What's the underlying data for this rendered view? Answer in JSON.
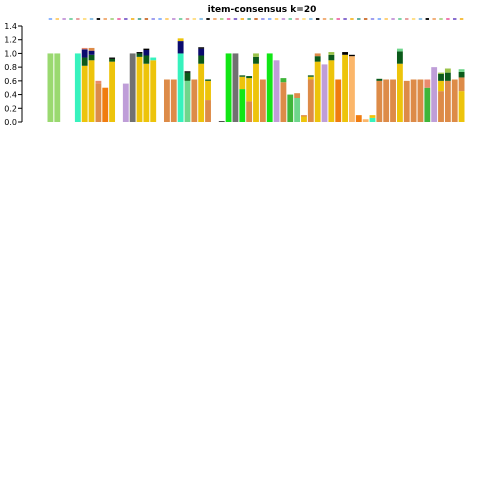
{
  "chart_data": {
    "type": "bar",
    "stacked": true,
    "title": "item-consensus k=20",
    "xlabel": "",
    "ylabel": "",
    "ylim": [
      0,
      1.4
    ],
    "yticks": [
      "0.0",
      "0.2",
      "0.4",
      "0.6",
      "0.8",
      "1.0",
      "1.2",
      "1.4"
    ],
    "grid": false,
    "legend": "none",
    "cluster_strip": true,
    "cluster_colors": [
      "#8fb8ff",
      "#ffd27a",
      "#c9a0dc",
      "#7fd6a8",
      "#e8a0a0",
      "#ffe08a",
      "#90c4e8",
      "#1a1a1a",
      "#f2b07a",
      "#b0d890",
      "#f07ab0",
      "#8a6fd0",
      "#f6c046",
      "#5fb0a0",
      "#d07a40",
      "#a0a0f0"
    ],
    "segment_colors": {
      "lightgreen": "#9ad970",
      "turquoise": "#37f2bd",
      "gold": "#edc40b",
      "darkgreen": "#0b5a1a",
      "navy": "#0b0b6e",
      "black": "#000000",
      "salmon": "#e98a6d",
      "orange": "#f07c10",
      "lavender": "#bf9ed8",
      "gray": "#717171",
      "green": "#11e615",
      "tan": "#dd8b48",
      "peach": "#fbb66a",
      "medgreen": "#3fb53a",
      "mint": "#6fd68c",
      "olive": "#9ac34a"
    },
    "items": [
      [
        [
          "lightgreen",
          1.0
        ]
      ],
      [
        [
          "lightgreen",
          1.0
        ]
      ],
      [],
      [],
      [
        [
          "turquoise",
          1.0
        ]
      ],
      [
        [
          "gold",
          0.82
        ],
        [
          "darkgreen",
          0.12
        ],
        [
          "navy",
          0.12
        ],
        [
          "salmon",
          0.02
        ]
      ],
      [
        [
          "gold",
          0.9
        ],
        [
          "darkgreen",
          0.08
        ],
        [
          "navy",
          0.06
        ],
        [
          "tan",
          0.04
        ]
      ],
      [
        [
          "tan",
          0.56
        ],
        [
          "salmon",
          0.04
        ]
      ],
      [
        [
          "orange",
          0.5
        ]
      ],
      [
        [
          "gold",
          0.88
        ],
        [
          "darkgreen",
          0.04
        ],
        [
          "black",
          0.02
        ]
      ],
      [],
      [
        [
          "lavender",
          0.56
        ]
      ],
      [
        [
          "gray",
          1.0
        ]
      ],
      [
        [
          "gold",
          0.95
        ],
        [
          "darkgreen",
          0.05
        ],
        [
          "black",
          0.02
        ]
      ],
      [
        [
          "gold",
          0.85
        ],
        [
          "darkgreen",
          0.12
        ],
        [
          "navy",
          0.08
        ],
        [
          "black",
          0.02
        ]
      ],
      [
        [
          "gold",
          0.9
        ],
        [
          "turquoise",
          0.04
        ]
      ],
      [],
      [
        [
          "tan",
          0.62
        ]
      ],
      [
        [
          "tan",
          0.62
        ]
      ],
      [
        [
          "turquoise",
          1.0
        ],
        [
          "navy",
          0.18
        ],
        [
          "gold",
          0.04
        ]
      ],
      [
        [
          "mint",
          0.6
        ],
        [
          "darkgreen",
          0.12
        ],
        [
          "black",
          0.02
        ]
      ],
      [
        [
          "tan",
          0.62
        ]
      ],
      [
        [
          "gold",
          0.85
        ],
        [
          "darkgreen",
          0.12
        ],
        [
          "navy",
          0.1
        ],
        [
          "black",
          0.02
        ]
      ],
      [
        [
          "tan",
          0.32
        ],
        [
          "gold",
          0.28
        ],
        [
          "darkgreen",
          0.02
        ]
      ],
      [],
      [
        [
          "black",
          0.01
        ]
      ],
      [
        [
          "green",
          1.0
        ]
      ],
      [
        [
          "gray",
          1.0
        ]
      ],
      [
        [
          "green",
          0.48
        ],
        [
          "gold",
          0.18
        ],
        [
          "darkgreen",
          0.02
        ]
      ],
      [
        [
          "tan",
          0.3
        ],
        [
          "gold",
          0.34
        ],
        [
          "darkgreen",
          0.03
        ]
      ],
      [
        [
          "gold",
          0.85
        ],
        [
          "darkgreen",
          0.1
        ],
        [
          "olive",
          0.05
        ]
      ],
      [
        [
          "tan",
          0.62
        ]
      ],
      [
        [
          "green",
          1.0
        ]
      ],
      [
        [
          "lavender",
          0.9
        ]
      ],
      [
        [
          "tan",
          0.58
        ],
        [
          "medgreen",
          0.06
        ]
      ],
      [
        [
          "medgreen",
          0.4
        ]
      ],
      [
        [
          "mint",
          0.35
        ],
        [
          "tan",
          0.07
        ]
      ],
      [
        [
          "gold",
          0.08
        ],
        [
          "tan",
          0.02
        ]
      ],
      [
        [
          "tan",
          0.62
        ],
        [
          "gold",
          0.04
        ],
        [
          "darkgreen",
          0.02
        ]
      ],
      [
        [
          "gold",
          0.88
        ],
        [
          "darkgreen",
          0.08
        ],
        [
          "tan",
          0.04
        ]
      ],
      [
        [
          "lavender",
          0.84
        ]
      ],
      [
        [
          "gold",
          0.9
        ],
        [
          "darkgreen",
          0.08
        ],
        [
          "olive",
          0.04
        ]
      ],
      [
        [
          "orange",
          0.62
        ]
      ],
      [
        [
          "gold",
          0.98
        ],
        [
          "black",
          0.04
        ]
      ],
      [
        [
          "peach",
          0.96
        ],
        [
          "black",
          0.02
        ]
      ],
      [
        [
          "orange",
          0.1
        ]
      ],
      [
        [
          "peach",
          0.04
        ]
      ],
      [
        [
          "turquoise",
          0.06
        ],
        [
          "gold",
          0.04
        ]
      ],
      [
        [
          "tan",
          0.6
        ],
        [
          "darkgreen",
          0.03
        ]
      ],
      [
        [
          "tan",
          0.62
        ]
      ],
      [
        [
          "tan",
          0.62
        ]
      ],
      [
        [
          "gold",
          0.85
        ],
        [
          "darkgreen",
          0.18
        ],
        [
          "mint",
          0.04
        ]
      ],
      [
        [
          "tan",
          0.6
        ]
      ],
      [
        [
          "tan",
          0.62
        ]
      ],
      [
        [
          "tan",
          0.62
        ]
      ],
      [
        [
          "medgreen",
          0.5
        ],
        [
          "salmon",
          0.12
        ]
      ],
      [
        [
          "lavender",
          0.8
        ]
      ],
      [
        [
          "tan",
          0.45
        ],
        [
          "gold",
          0.15
        ],
        [
          "darkgreen",
          0.1
        ],
        [
          "olive",
          0.02
        ]
      ],
      [
        [
          "tan",
          0.6
        ],
        [
          "darkgreen",
          0.12
        ],
        [
          "olive",
          0.06
        ]
      ],
      [
        [
          "tan",
          0.62
        ]
      ],
      [
        [
          "gold",
          0.45
        ],
        [
          "tan",
          0.2
        ],
        [
          "darkgreen",
          0.08
        ],
        [
          "mint",
          0.04
        ]
      ]
    ]
  }
}
